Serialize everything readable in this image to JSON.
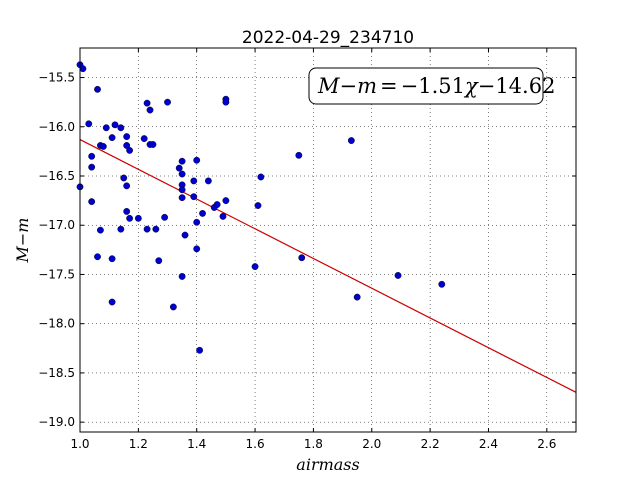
{
  "chart_data": {
    "type": "scatter",
    "title": "2022-04-29_234710",
    "xlabel": "airmass",
    "ylabel": "M−m",
    "xlim": [
      1.0,
      2.7
    ],
    "ylim": [
      -19.1,
      -15.2
    ],
    "x_ticks": [
      "1.0",
      "1.2",
      "1.4",
      "1.6",
      "1.8",
      "2.0",
      "2.2",
      "2.4",
      "2.6"
    ],
    "y_ticks": [
      "−15.5",
      "−16.0",
      "−16.5",
      "−17.0",
      "−17.5",
      "−18.0",
      "−18.5",
      "−19.0"
    ],
    "grid": true,
    "annotation": {
      "lhs": "M−m",
      "equals": "=",
      "rhs_slope": "−1.51",
      "rhs_var": "χ",
      "rhs_intercept": "−14.62",
      "placement": "top-right"
    },
    "fit_line": {
      "slope": -1.51,
      "intercept": -14.62,
      "color": "#cc0000"
    },
    "point_color": "#0000cc",
    "points": [
      [
        1.0,
        -15.37
      ],
      [
        1.01,
        -15.41
      ],
      [
        1.0,
        -16.61
      ],
      [
        1.03,
        -15.97
      ],
      [
        1.04,
        -16.3
      ],
      [
        1.04,
        -16.41
      ],
      [
        1.04,
        -16.76
      ],
      [
        1.06,
        -15.62
      ],
      [
        1.07,
        -16.19
      ],
      [
        1.08,
        -16.2
      ],
      [
        1.09,
        -16.01
      ],
      [
        1.11,
        -16.11
      ],
      [
        1.12,
        -15.98
      ],
      [
        1.06,
        -17.32
      ],
      [
        1.07,
        -17.05
      ],
      [
        1.11,
        -17.34
      ],
      [
        1.11,
        -17.78
      ],
      [
        1.14,
        -16.01
      ],
      [
        1.14,
        -17.04
      ],
      [
        1.15,
        -16.52
      ],
      [
        1.16,
        -16.1
      ],
      [
        1.16,
        -16.19
      ],
      [
        1.17,
        -16.24
      ],
      [
        1.16,
        -16.6
      ],
      [
        1.16,
        -16.86
      ],
      [
        1.17,
        -16.93
      ],
      [
        1.2,
        -16.93
      ],
      [
        1.22,
        -16.12
      ],
      [
        1.23,
        -15.76
      ],
      [
        1.24,
        -15.83
      ],
      [
        1.24,
        -16.18
      ],
      [
        1.25,
        -16.18
      ],
      [
        1.23,
        -17.04
      ],
      [
        1.26,
        -17.04
      ],
      [
        1.27,
        -17.36
      ],
      [
        1.29,
        -16.92
      ],
      [
        1.3,
        -15.75
      ],
      [
        1.32,
        -17.83
      ],
      [
        1.34,
        -16.42
      ],
      [
        1.35,
        -16.35
      ],
      [
        1.35,
        -16.48
      ],
      [
        1.35,
        -16.59
      ],
      [
        1.35,
        -16.64
      ],
      [
        1.35,
        -16.72
      ],
      [
        1.36,
        -17.1
      ],
      [
        1.35,
        -17.52
      ],
      [
        1.39,
        -16.55
      ],
      [
        1.39,
        -16.71
      ],
      [
        1.4,
        -16.34
      ],
      [
        1.4,
        -16.97
      ],
      [
        1.4,
        -17.24
      ],
      [
        1.41,
        -18.27
      ],
      [
        1.42,
        -16.88
      ],
      [
        1.44,
        -16.55
      ],
      [
        1.46,
        -16.82
      ],
      [
        1.47,
        -16.79
      ],
      [
        1.49,
        -16.91
      ],
      [
        1.5,
        -15.72
      ],
      [
        1.5,
        -15.75
      ],
      [
        1.5,
        -16.75
      ],
      [
        1.6,
        -17.42
      ],
      [
        1.61,
        -16.8
      ],
      [
        1.62,
        -16.51
      ],
      [
        1.75,
        -16.29
      ],
      [
        1.76,
        -17.33
      ],
      [
        1.93,
        -16.14
      ],
      [
        1.95,
        -17.73
      ],
      [
        2.09,
        -17.51
      ],
      [
        2.24,
        -17.6
      ]
    ]
  }
}
